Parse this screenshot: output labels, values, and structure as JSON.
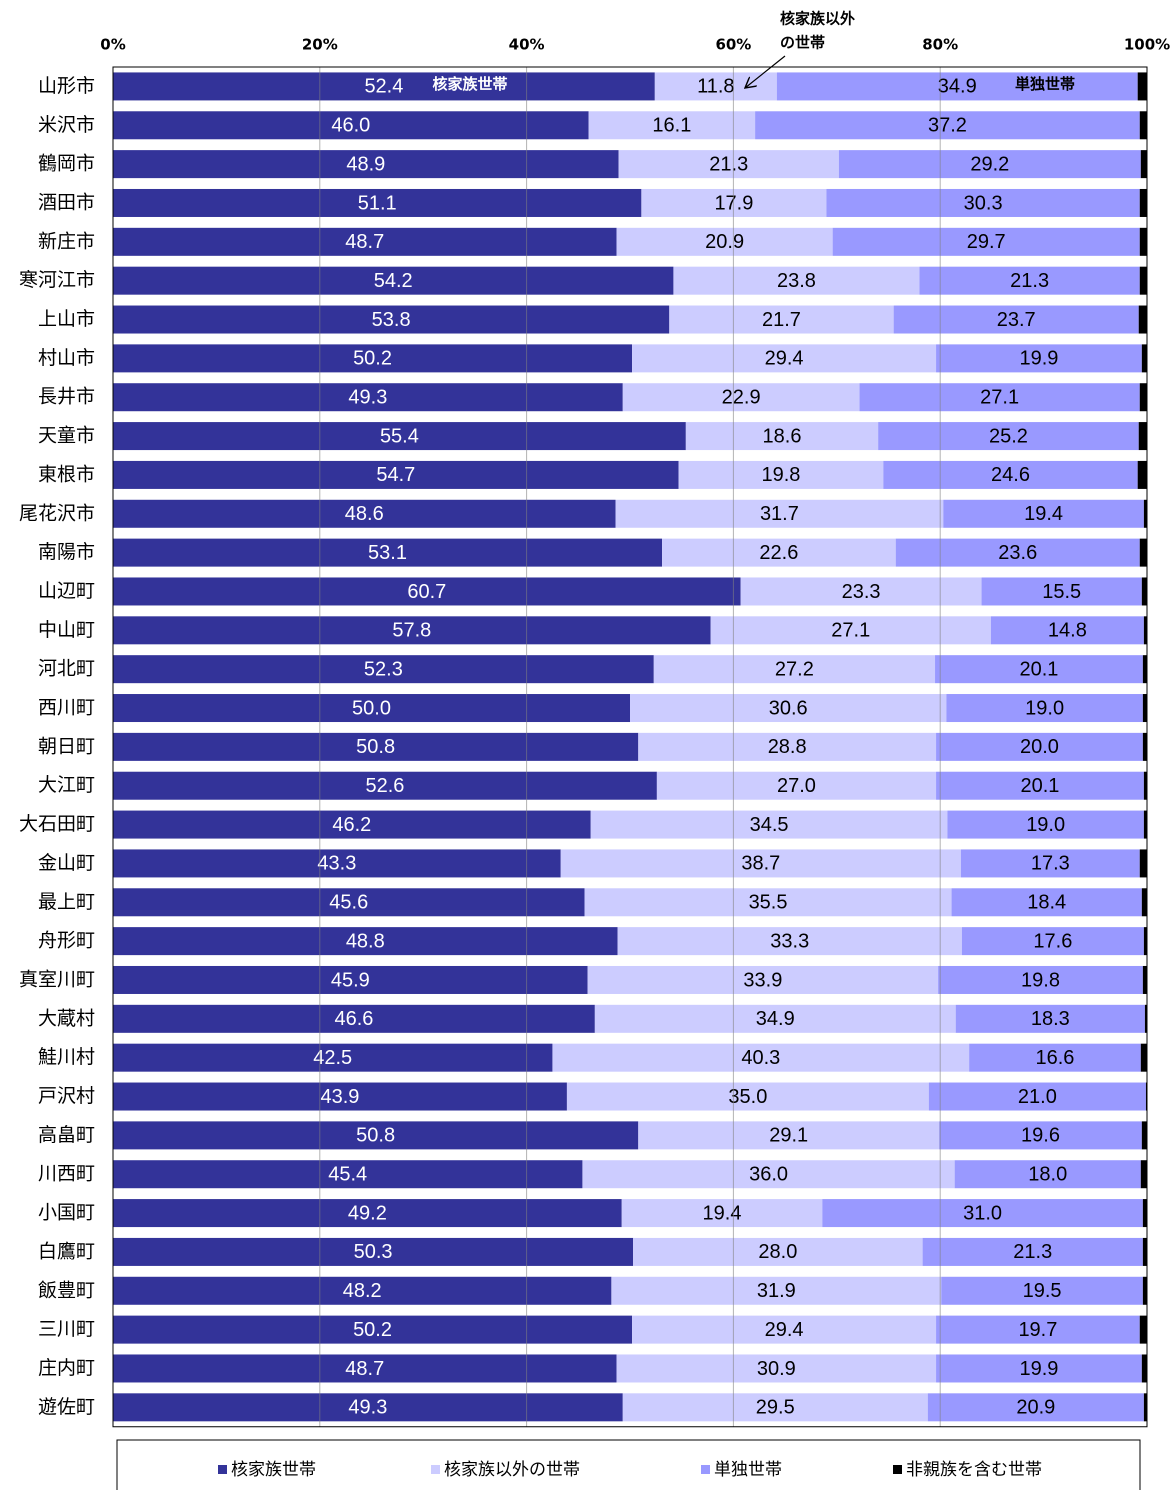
{
  "chart_data": {
    "type": "stacked-barh",
    "categories": [
      "山形市",
      "米沢市",
      "鶴岡市",
      "酒田市",
      "新庄市",
      "寒河江市",
      "上山市",
      "村山市",
      "長井市",
      "天童市",
      "東根市",
      "尾花沢市",
      "南陽市",
      "山辺町",
      "中山町",
      "河北町",
      "西川町",
      "朝日町",
      "大江町",
      "大石田町",
      "金山町",
      "最上町",
      "舟形町",
      "真室川町",
      "大蔵村",
      "鮭川村",
      "戸沢村",
      "高畠町",
      "川西町",
      "小国町",
      "白鷹町",
      "飯豊町",
      "三川町",
      "庄内町",
      "遊佐町"
    ],
    "series": [
      {
        "name": "核家族世帯",
        "color": "#333399",
        "values": [
          52.4,
          46.0,
          48.9,
          51.1,
          48.7,
          54.2,
          53.8,
          50.2,
          49.3,
          55.4,
          54.7,
          48.6,
          53.1,
          60.7,
          57.8,
          52.3,
          50.0,
          50.8,
          52.6,
          46.2,
          43.3,
          45.6,
          48.8,
          45.9,
          46.6,
          42.5,
          43.9,
          50.8,
          45.4,
          49.2,
          50.3,
          48.2,
          50.2,
          48.7,
          49.3
        ],
        "value_labels": [
          "52.4",
          "46.0",
          "48.9",
          "51.1",
          "48.7",
          "54.2",
          "53.8",
          "50.2",
          "49.3",
          "55.4",
          "54.7",
          "48.6",
          "53.1",
          "60.7",
          "57.8",
          "52.3",
          "50.0",
          "50.8",
          "52.6",
          "46.2",
          "43.3",
          "45.6",
          "48.8",
          "45.9",
          "46.6",
          "42.5",
          "43.9",
          "50.8",
          "45.4",
          "49.2",
          "50.3",
          "48.2",
          "50.2",
          "48.7",
          "49.3"
        ]
      },
      {
        "name": "核家族以外の世帯",
        "color": "#CCCCFF",
        "values": [
          11.8,
          16.1,
          21.3,
          17.9,
          20.9,
          23.8,
          21.7,
          29.4,
          22.9,
          18.6,
          19.8,
          31.7,
          22.6,
          23.3,
          27.1,
          27.2,
          30.6,
          28.8,
          27.0,
          34.5,
          38.7,
          35.5,
          33.3,
          33.9,
          34.9,
          40.3,
          35.0,
          29.1,
          36.0,
          19.4,
          28.0,
          31.9,
          29.4,
          30.9,
          29.5
        ],
        "value_labels": [
          "11.8",
          "16.1",
          "21.3",
          "17.9",
          "20.9",
          "23.8",
          "21.7",
          "29.4",
          "22.9",
          "18.6",
          "19.8",
          "31.7",
          "22.6",
          "23.3",
          "27.1",
          "27.2",
          "30.6",
          "28.8",
          "27.0",
          "34.5",
          "38.7",
          "35.5",
          "33.3",
          "33.9",
          "34.9",
          "40.3",
          "35.0",
          "29.1",
          "36.0",
          "19.4",
          "28.0",
          "31.9",
          "29.4",
          "30.9",
          "29.5"
        ]
      },
      {
        "name": "単独世帯",
        "color": "#9999FF",
        "values": [
          34.9,
          37.2,
          29.2,
          30.3,
          29.7,
          21.3,
          23.7,
          19.9,
          27.1,
          25.2,
          24.6,
          19.4,
          23.6,
          15.5,
          14.8,
          20.1,
          19.0,
          20.0,
          20.1,
          19.0,
          17.3,
          18.4,
          17.6,
          19.8,
          18.3,
          16.6,
          21.0,
          19.6,
          18.0,
          31.0,
          21.3,
          19.5,
          19.7,
          19.9,
          20.9
        ],
        "value_labels": [
          "34.9",
          "37.2",
          "29.2",
          "30.3",
          "29.7",
          "21.3",
          "23.7",
          "19.9",
          "27.1",
          "25.2",
          "24.6",
          "19.4",
          "23.6",
          "15.5",
          "14.8",
          "20.1",
          "19.0",
          "20.0",
          "20.1",
          "19.0",
          "17.3",
          "18.4",
          "17.6",
          "19.8",
          "18.3",
          "16.6",
          "21.0",
          "19.6",
          "18.0",
          "31.0",
          "21.3",
          "19.5",
          "19.7",
          "19.9",
          "20.9"
        ]
      },
      {
        "name": "非親族を含む世帯",
        "color": "#000000",
        "values": [
          0.9,
          0.7,
          0.6,
          0.7,
          0.7,
          0.7,
          0.8,
          0.5,
          0.7,
          0.8,
          0.9,
          0.3,
          0.7,
          0.5,
          0.3,
          0.4,
          0.4,
          0.4,
          0.3,
          0.3,
          0.7,
          0.5,
          0.3,
          0.4,
          0.2,
          0.6,
          0.1,
          0.5,
          0.6,
          0.4,
          0.4,
          0.4,
          0.7,
          0.5,
          0.3
        ]
      }
    ],
    "xlim": [
      0,
      100
    ],
    "xticks": [
      {
        "value": 0,
        "label": "0%"
      },
      {
        "value": 20,
        "label": "20%"
      },
      {
        "value": 40,
        "label": "40%"
      },
      {
        "value": 60,
        "label": "60%"
      },
      {
        "value": 80,
        "label": "80%"
      },
      {
        "value": 100,
        "label": "100%"
      }
    ],
    "grid": true,
    "annotations": [
      {
        "text": "核家族世帯"
      },
      {
        "lines": [
          "核家族以外",
          "の世帯"
        ]
      },
      {
        "text": "単独世帯"
      }
    ],
    "legend": "bottom"
  }
}
